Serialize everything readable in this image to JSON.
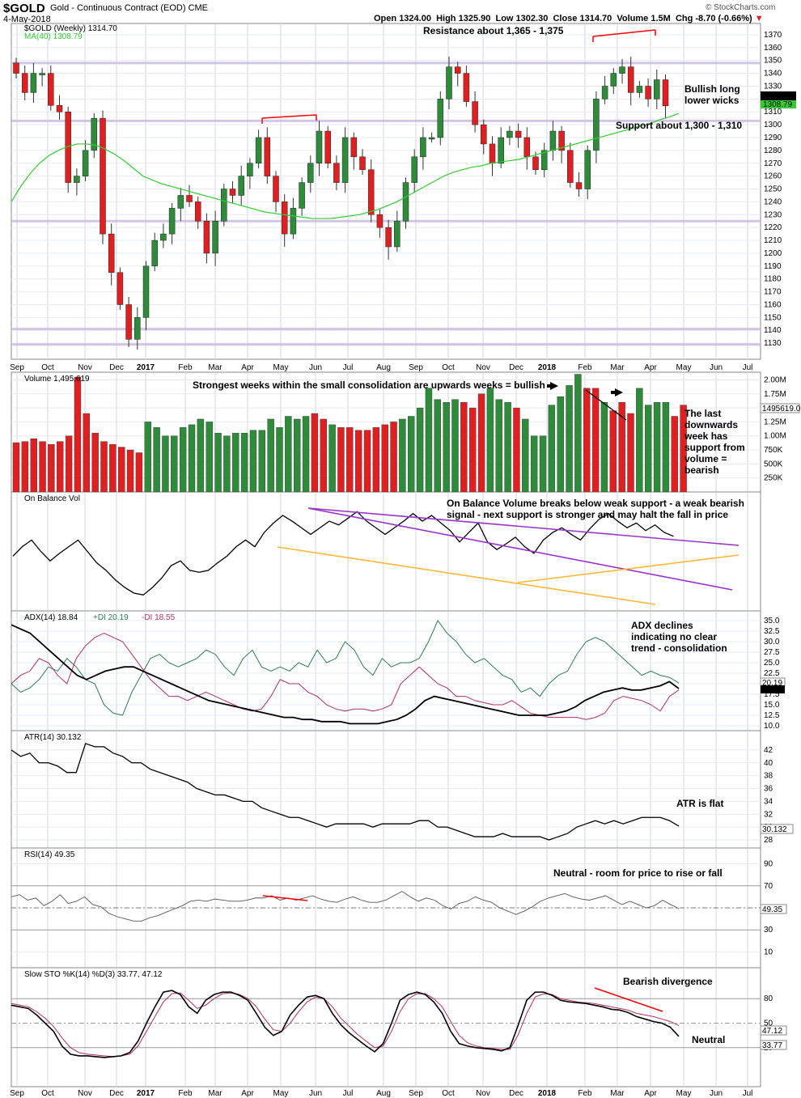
{
  "header": {
    "symbol": "$GOLD",
    "name": "Gold - Continuous Contract (EOD)",
    "exchange": "CME",
    "date": "4-May-2018",
    "source": "© StockCharts.com",
    "open_label": "Open",
    "open": "1324.00",
    "high_label": "High",
    "high": "1325.90",
    "low_label": "Low",
    "low": "1302.30",
    "close_label": "Close",
    "close": "1314.70",
    "volume_label": "Volume",
    "volume": "1.5M",
    "chg_label": "Chg",
    "chg": "-8.70 (-0.66%)"
  },
  "colors": {
    "up": "#2e8b3a",
    "down": "#e02020",
    "ma": "#33cc33",
    "plusdi": "#2e7d4f",
    "minusdi": "#b03060",
    "purple": "#9933cc",
    "orange": "#ffb833",
    "redline": "#ff0000"
  },
  "chart_data": [
    {
      "type": "candlestick",
      "legend": [
        "$GOLD (Weekly) 1314.70",
        "MA(40) 1308.79"
      ],
      "ylim": [
        1120,
        1375
      ],
      "yticks": [
        1130,
        1140,
        1150,
        1160,
        1170,
        1180,
        1190,
        1200,
        1210,
        1220,
        1230,
        1240,
        1250,
        1260,
        1270,
        1280,
        1290,
        1300,
        1310,
        1320,
        1330,
        1340,
        1350,
        1360,
        1370
      ],
      "last_labels": [
        "1314.70",
        "1308.79"
      ],
      "horizontal_levels": [
        1348,
        1303,
        1225,
        1141,
        1129
      ],
      "ma40": [
        1240,
        1252,
        1262,
        1270,
        1276,
        1280,
        1283,
        1285,
        1285,
        1284,
        1281,
        1277,
        1272,
        1266,
        1260,
        1257,
        1254,
        1252,
        1250,
        1248,
        1246,
        1244,
        1242,
        1240,
        1238,
        1236,
        1234,
        1232,
        1231,
        1230,
        1229,
        1228,
        1227,
        1227,
        1227,
        1228,
        1229,
        1230,
        1232,
        1234,
        1237,
        1240,
        1244,
        1248,
        1252,
        1256,
        1260,
        1263,
        1265,
        1267,
        1268,
        1270,
        1271,
        1272,
        1273,
        1275,
        1277,
        1279,
        1281,
        1283,
        1285,
        1287,
        1289,
        1291,
        1293,
        1295,
        1297,
        1299,
        1301,
        1304,
        1306,
        1308.79
      ]
    },
    {
      "type": "bar",
      "title": "Volume 1,495,619",
      "ylim": [
        0,
        2050000
      ],
      "yticks": [
        "2.00M",
        "1.75M",
        "1.50M",
        "1.25M",
        "1.00M",
        "750K",
        "500K",
        "250K"
      ],
      "ytick_values": [
        2000000,
        1750000,
        1500000,
        1250000,
        1000000,
        750000,
        500000,
        250000
      ],
      "last_label": "1495619.0",
      "values": [
        880,
        900,
        950,
        900,
        850,
        900,
        1000,
        2050,
        1400,
        1050,
        900,
        850,
        800,
        750,
        700,
        1250,
        1150,
        1000,
        1000,
        1150,
        1200,
        1300,
        1250,
        1050,
        1000,
        1050,
        1050,
        1100,
        1100,
        1300,
        1150,
        1350,
        1300,
        1350,
        1400,
        1300,
        1200,
        1150,
        1150,
        1100,
        1100,
        1150,
        1200,
        1250,
        1300,
        1350,
        1500,
        1850,
        1650,
        1600,
        1650,
        1600,
        1500,
        1750,
        1850,
        1650,
        1600,
        1500,
        1300,
        1000,
        1000,
        1550,
        1700,
        1900,
        2100,
        1850,
        1850,
        1600,
        1450,
        1600,
        1400,
        1850,
        1550,
        1600,
        1600,
        1350,
        1550
      ],
      "colors_up": [
        0,
        0,
        0,
        0,
        0,
        0,
        0,
        0,
        0,
        0,
        0,
        0,
        0,
        0,
        0,
        1,
        1,
        1,
        1,
        1,
        1,
        1,
        1,
        1,
        1,
        1,
        1,
        1,
        1,
        1,
        1,
        1,
        1,
        1,
        0,
        0,
        1,
        0,
        0,
        0,
        0,
        0,
        0,
        0,
        1,
        1,
        1,
        1,
        1,
        1,
        1,
        0,
        0,
        0,
        1,
        1,
        1,
        0,
        1,
        1,
        1,
        1,
        1,
        1,
        1,
        0,
        0,
        1,
        0,
        0,
        0,
        1,
        1,
        1,
        1,
        0,
        0
      ]
    },
    {
      "type": "line",
      "title": "On Balance Vol",
      "ylim": [
        0,
        100
      ],
      "values": [
        45,
        55,
        62,
        50,
        40,
        48,
        55,
        62,
        50,
        38,
        30,
        20,
        12,
        6,
        4,
        12,
        22,
        35,
        40,
        30,
        28,
        30,
        38,
        45,
        55,
        62,
        55,
        70,
        80,
        88,
        82,
        75,
        68,
        75,
        82,
        78,
        85,
        92,
        82,
        75,
        68,
        75,
        82,
        90,
        82,
        88,
        80,
        72,
        60,
        70,
        80,
        60,
        52,
        58,
        65,
        55,
        48,
        62,
        70,
        75,
        68,
        62,
        74,
        84,
        90,
        82,
        75,
        80,
        72,
        78,
        70,
        66
      ],
      "x_offset": 2,
      "purple_top": [
        [
          381,
          628
        ],
        [
          706,
          656
        ],
        [
          913,
          674
        ]
      ],
      "purple_lower": [
        [
          381,
          628
        ],
        [
          905,
          729
        ]
      ],
      "orange_upper": [
        [
          640,
          720
        ],
        [
          913,
          686
        ]
      ],
      "orange_lower": [
        [
          343,
          676
        ],
        [
          810,
          747
        ]
      ]
    },
    {
      "type": "line",
      "title": "ADX(14) 18.84",
      "legend": [
        "ADX(14) 18.84",
        "+DI 20.19",
        "-DI 18.55"
      ],
      "ylim": [
        10,
        35
      ],
      "yticks": [
        35.0,
        32.5,
        30.0,
        27.5,
        25.0,
        22.5,
        20.0,
        17.5,
        15.0,
        12.5,
        10.0
      ],
      "last_labels": [
        "20.19",
        "18.84"
      ],
      "adx": [
        34,
        33,
        32,
        30,
        28,
        26,
        24,
        22,
        21,
        22,
        23,
        23.5,
        24,
        24,
        23,
        22,
        21,
        20,
        19,
        18,
        17,
        16,
        15.5,
        15,
        14.5,
        14,
        13.5,
        13,
        12.5,
        12,
        12,
        11.5,
        11.5,
        11,
        11,
        11,
        10.5,
        10.5,
        10.5,
        10.5,
        11,
        11.5,
        12.5,
        14,
        16,
        17,
        16.5,
        16,
        15.5,
        15,
        14.5,
        14,
        13.5,
        13,
        12.5,
        12.5,
        12.5,
        12.5,
        13,
        13.5,
        14.5,
        16,
        17,
        18,
        18.5,
        19,
        18.5,
        18.5,
        19,
        19.5,
        20.5,
        18.84
      ],
      "plusdi": [
        20,
        18,
        19,
        21,
        24,
        23,
        26,
        24,
        21,
        20,
        15,
        13,
        12.5,
        18,
        22,
        26,
        27,
        25,
        24,
        25,
        26,
        28,
        27,
        24,
        22,
        26,
        28,
        24,
        23,
        24,
        23,
        25,
        24,
        28,
        25,
        26,
        30,
        28,
        24,
        22,
        26,
        24,
        25,
        25,
        26,
        30,
        35,
        32,
        30,
        27,
        25,
        26,
        24,
        22,
        21,
        18,
        19,
        17,
        20,
        22,
        23,
        27,
        30,
        31,
        30,
        28,
        26,
        24,
        22,
        23,
        22,
        21.5,
        20.19
      ],
      "minusdi": [
        20,
        22,
        23,
        26,
        25,
        22,
        20,
        26,
        29,
        31,
        32,
        31,
        30,
        27,
        24,
        21,
        19,
        17,
        17,
        16,
        17,
        18,
        17,
        16,
        15,
        14,
        13.5,
        14,
        17,
        21,
        20,
        20,
        18,
        17,
        15,
        14,
        13.5,
        14,
        14,
        13.5,
        14,
        15,
        20,
        22,
        24,
        22,
        20,
        19,
        17,
        17,
        16,
        15.5,
        15,
        15,
        16,
        14.5,
        13,
        12.5,
        12,
        12,
        12,
        12,
        11.5,
        12,
        13,
        16,
        17,
        16.5,
        16,
        15,
        13.5,
        17,
        18.55
      ]
    },
    {
      "type": "line",
      "title": "ATR(14) 30.132",
      "ylim": [
        27.5,
        44
      ],
      "yticks": [
        42,
        40,
        38,
        36,
        34,
        32,
        30,
        28
      ],
      "last_label": "30.132",
      "values": [
        42,
        41,
        41.5,
        40,
        40,
        39.5,
        38.5,
        38.5,
        43,
        42.5,
        42.5,
        41.5,
        41,
        40,
        40,
        39,
        38.5,
        38,
        37.5,
        37,
        36,
        35.5,
        35,
        35,
        34.5,
        34,
        34,
        33,
        32.5,
        32,
        31.5,
        31.5,
        31,
        30.5,
        30,
        30.5,
        30.5,
        30.5,
        30.5,
        30,
        30.5,
        30.5,
        30.5,
        30.5,
        31,
        31,
        30,
        30,
        29.5,
        29,
        28.5,
        28.5,
        28.5,
        29,
        28.5,
        28.5,
        28.5,
        28.5,
        28,
        28.5,
        29,
        30,
        30.5,
        31,
        30.5,
        31,
        30.5,
        31,
        31.5,
        31.5,
        31.5,
        31,
        30.132
      ]
    },
    {
      "type": "line",
      "title": "RSI(14) 49.35",
      "ylim": [
        0,
        100
      ],
      "yticks": [
        90,
        70,
        50,
        30,
        10
      ],
      "last_label": "49.35",
      "values": [
        60,
        62,
        57,
        59,
        52,
        56,
        62,
        54,
        56,
        60,
        53,
        51,
        45,
        42,
        40,
        38,
        38,
        41,
        43,
        46,
        49,
        52,
        56,
        57,
        56,
        58,
        57,
        56,
        56,
        57,
        59,
        59,
        61,
        57,
        59,
        57,
        59,
        61,
        58,
        56,
        55,
        58,
        60,
        57,
        55,
        55,
        57,
        61,
        65,
        60,
        56,
        59,
        57,
        52,
        49,
        54,
        56,
        60,
        57,
        55,
        50,
        47,
        44,
        47,
        51,
        56,
        59,
        61,
        63,
        60,
        58,
        57,
        59,
        61,
        57,
        53,
        56,
        53,
        50,
        52,
        57,
        53,
        49.35
      ],
      "redline": [
        [
          325,
          1107
        ],
        [
          380,
          1113
        ]
      ]
    },
    {
      "type": "line",
      "title": "Slow STO %K(14) %D(3) 33.77, 47.12",
      "legend": [
        "Slow STO %K(14) %D(3) 33.77, 47.12"
      ],
      "ylim": [
        0,
        100
      ],
      "yticks": [
        80,
        50,
        20
      ],
      "last_labels": [
        "47.12",
        "33.77"
      ],
      "k": [
        72,
        70,
        68,
        60,
        50,
        40,
        22,
        12,
        10,
        10,
        9,
        8,
        9,
        10,
        14,
        28,
        50,
        70,
        88,
        90,
        85,
        70,
        62,
        78,
        85,
        88,
        88,
        84,
        78,
        62,
        45,
        35,
        40,
        60,
        72,
        82,
        84,
        80,
        62,
        48,
        38,
        30,
        22,
        15,
        25,
        50,
        78,
        85,
        88,
        85,
        76,
        62,
        40,
        25,
        22,
        20,
        19,
        18,
        16,
        20,
        48,
        78,
        88,
        88,
        84,
        78,
        76,
        75,
        74,
        72,
        70,
        67,
        66,
        63,
        58,
        55,
        52,
        50,
        45,
        33.77
      ],
      "d": [
        74,
        72,
        70,
        64,
        56,
        46,
        32,
        20,
        14,
        12,
        11,
        10,
        9,
        10,
        12,
        22,
        40,
        58,
        76,
        86,
        87,
        78,
        68,
        72,
        80,
        86,
        87,
        85,
        80,
        70,
        55,
        42,
        40,
        50,
        64,
        76,
        82,
        80,
        70,
        56,
        46,
        36,
        28,
        20,
        22,
        40,
        64,
        80,
        86,
        86,
        80,
        70,
        52,
        35,
        26,
        22,
        20,
        19,
        18,
        18,
        36,
        62,
        82,
        86,
        85,
        80,
        78,
        76,
        75,
        74,
        72,
        70,
        68,
        66,
        62,
        60,
        58,
        55,
        52,
        47.12
      ],
      "redline": [
        [
          735,
          1221
        ],
        [
          819,
          1250
        ]
      ]
    }
  ],
  "xaxis": {
    "months": [
      "Sep",
      "Oct",
      "Nov",
      "Dec",
      "2017",
      "Feb",
      "Mar",
      "Apr",
      "May",
      "Jun",
      "Jul",
      "Aug",
      "Sep",
      "Oct",
      "Nov",
      "Dec",
      "2018",
      "Feb",
      "Mar",
      "Apr",
      "May",
      "Jun",
      "Jul"
    ]
  },
  "annotations": {
    "resistance": "Resistance about 1,365 - 1,375",
    "bullish_wicks_1": "Bullish long",
    "bullish_wicks_2": "lower wicks",
    "support": "Support about 1,300 - 1,310",
    "volume_note": "Strongest weeks within the small consolidation are upwards weeks = bullish",
    "last_down_1": "The last",
    "last_down_2": "downwards",
    "last_down_3": "week has",
    "last_down_4": "support from",
    "last_down_5": "volume =",
    "last_down_6": "bearish",
    "obv_1": "On Balance Volume breaks below weak support - a weak bearish",
    "obv_2": "signal - next support is stronger and may halt the fall in price",
    "adx_1": "ADX declines",
    "adx_2": "indicating no clear",
    "adx_3": "trend - consolidation",
    "atr": "ATR is flat",
    "rsi": "Neutral - room for price to rise or fall",
    "sto_div": "Bearish divergence",
    "sto_neutral": "Neutral"
  }
}
